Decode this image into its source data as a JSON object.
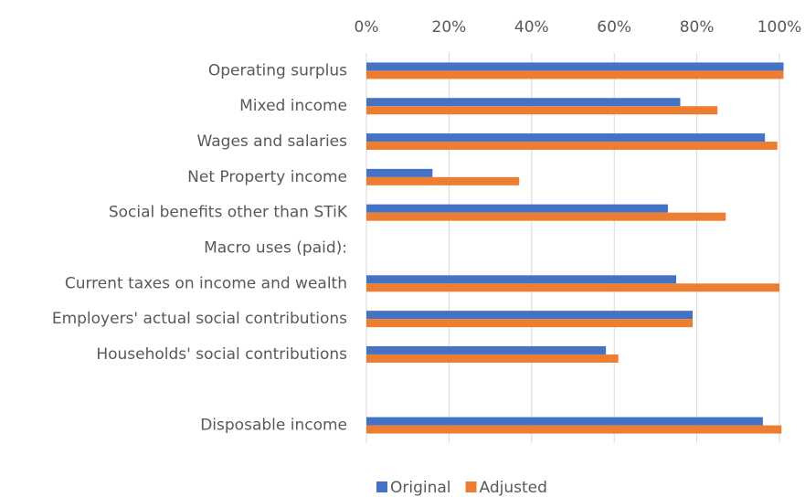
{
  "chart_data": {
    "type": "bar",
    "orientation": "horizontal",
    "categories": [
      "Operating surplus",
      "Mixed income",
      "Wages and salaries",
      "Net Property income",
      "Social benefits other than STiK",
      "Macro uses (paid):",
      "Current taxes on income and wealth",
      "Employers' actual social contributions",
      "Households' social contributions",
      null,
      "Disposable income"
    ],
    "series": [
      {
        "name": "Original",
        "color": "#4472c4",
        "values": [
          101,
          76,
          96.5,
          16,
          73,
          null,
          75,
          79,
          58,
          null,
          96
        ]
      },
      {
        "name": "Adjusted",
        "color": "#ed7d31",
        "values": [
          101,
          85,
          99.5,
          37,
          87,
          null,
          100,
          79,
          61,
          null,
          100.5
        ]
      }
    ],
    "xlim": [
      0,
      100
    ],
    "xticks": [
      {
        "value": 0,
        "label": "0%"
      },
      {
        "value": 20,
        "label": "20%"
      },
      {
        "value": 40,
        "label": "40%"
      },
      {
        "value": 60,
        "label": "60%"
      },
      {
        "value": 80,
        "label": "80%"
      },
      {
        "value": 100,
        "label": "100%"
      }
    ],
    "grid": true,
    "legend": "bottom"
  }
}
